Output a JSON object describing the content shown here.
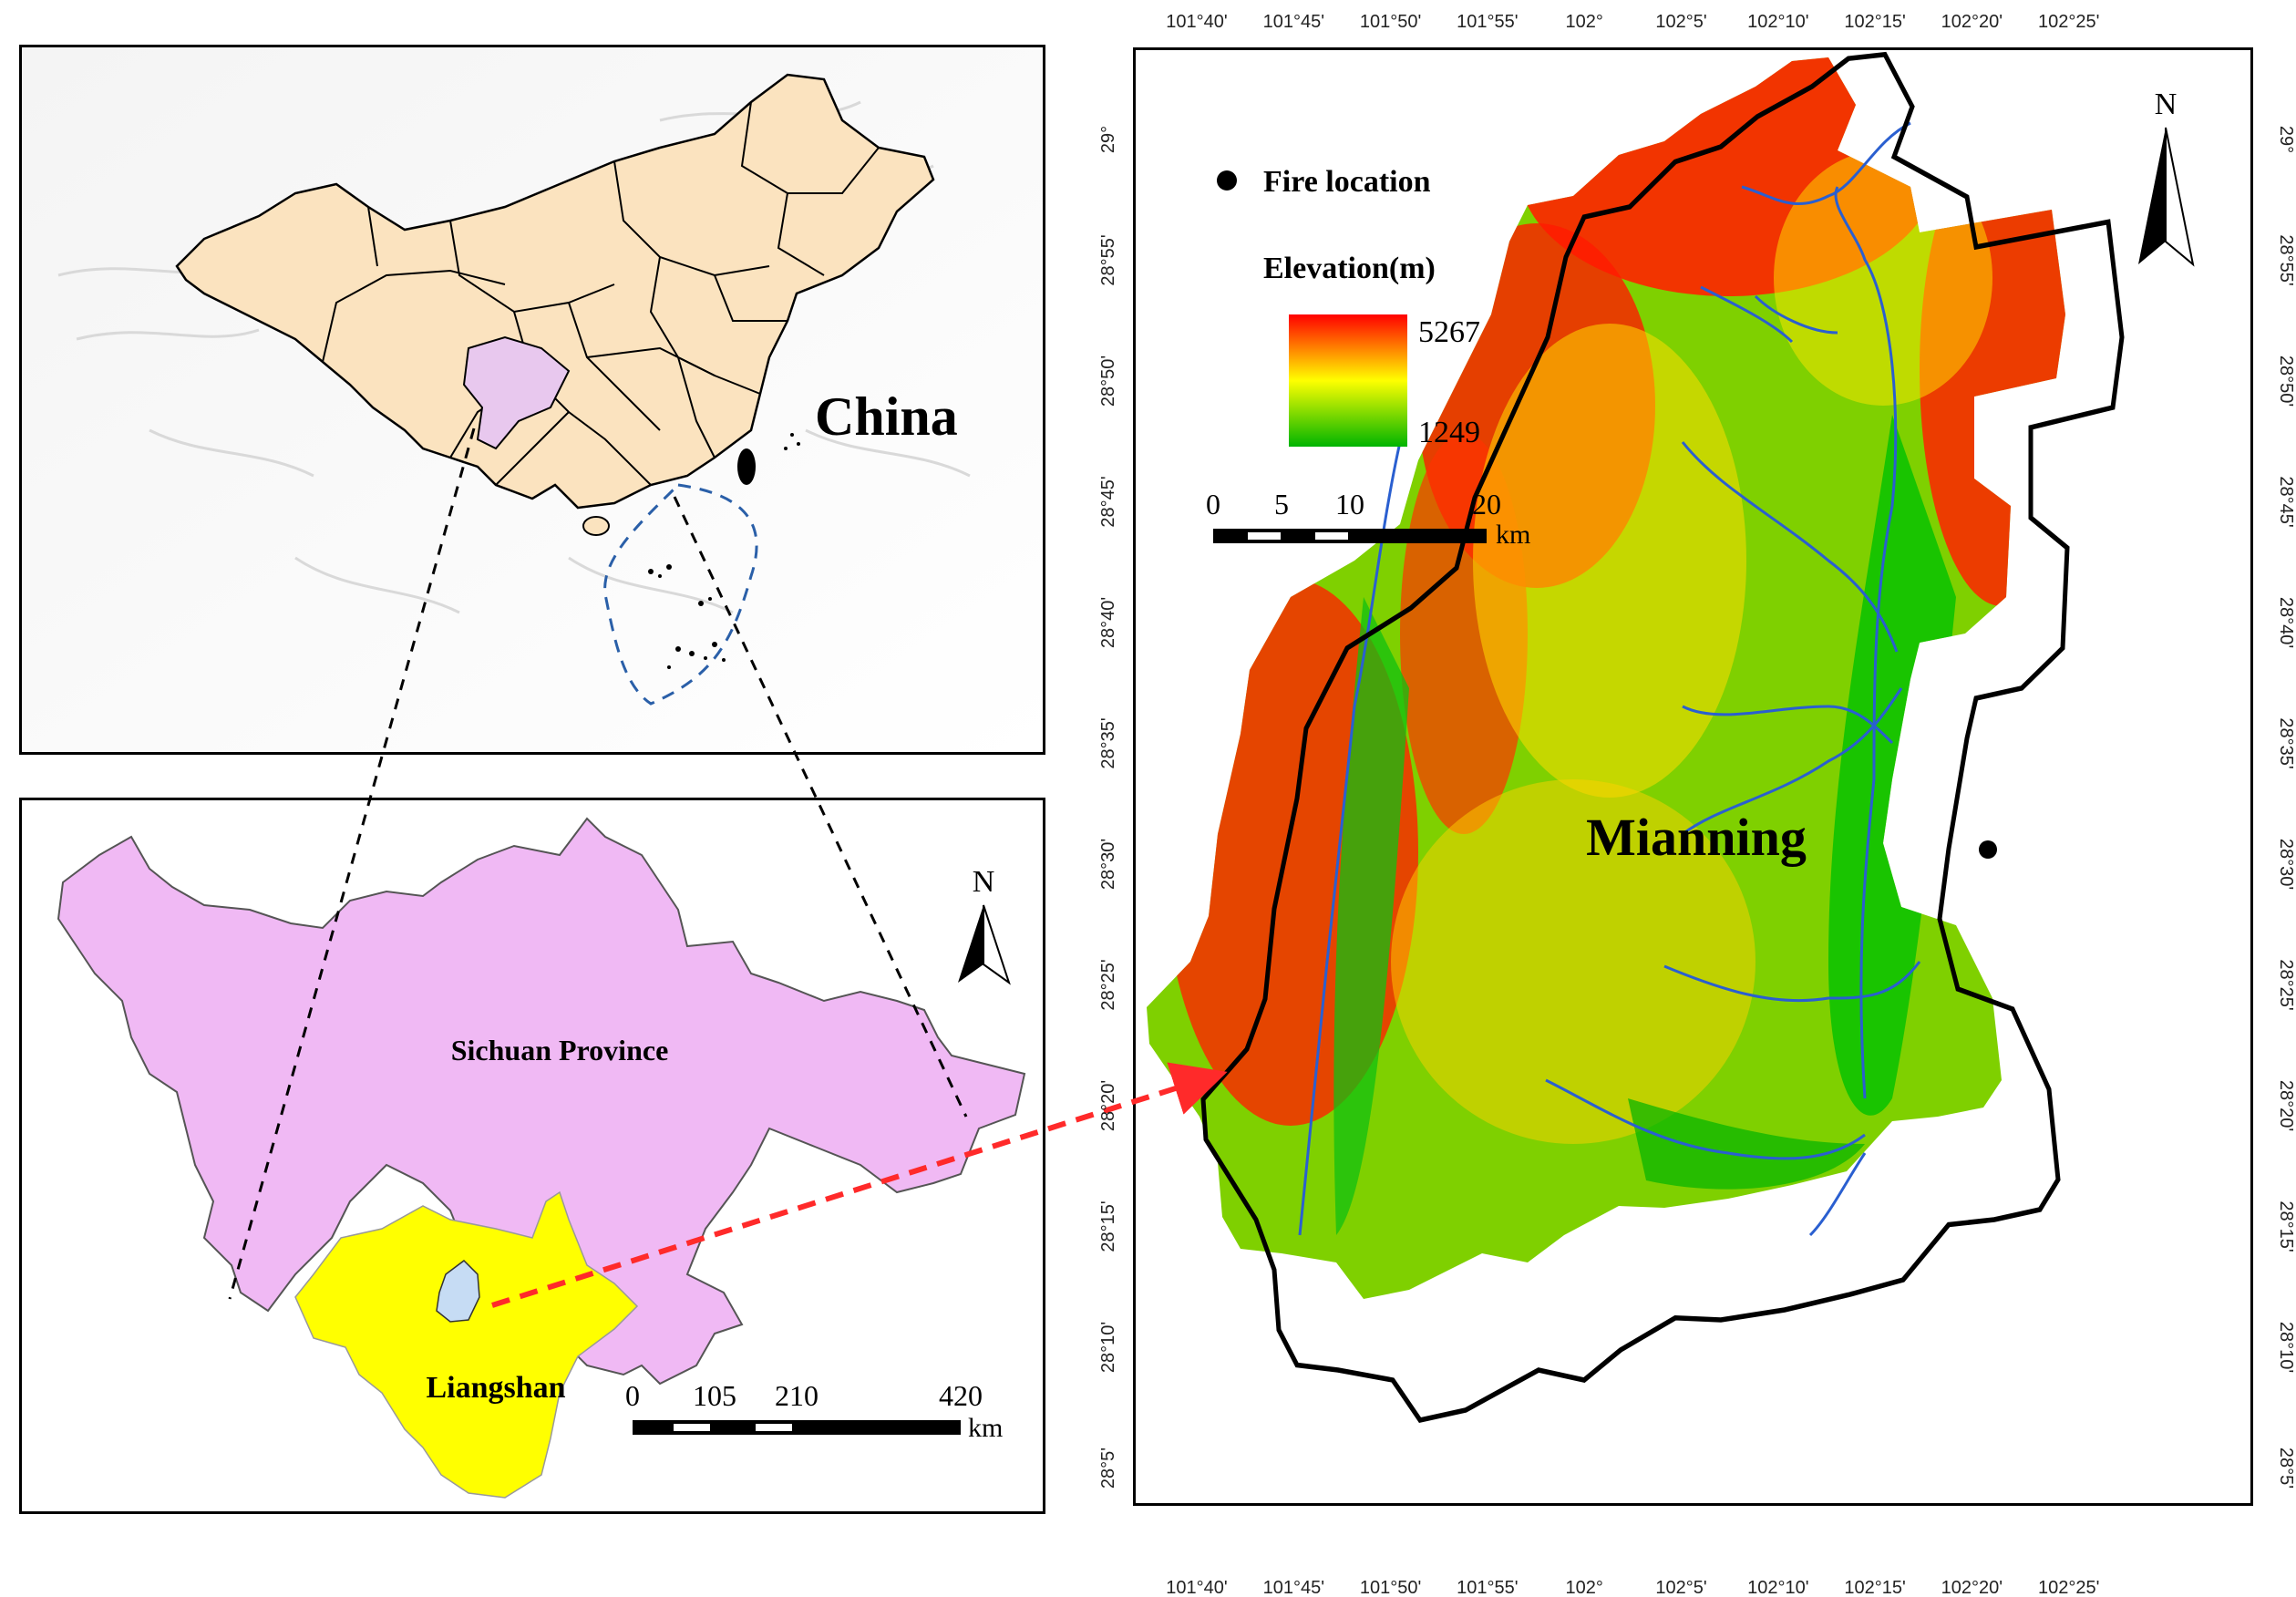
{
  "china_panel": {
    "label": "China"
  },
  "sichuan_panel": {
    "province_label": "Sichuan Province",
    "prefecture_label": "Liangshan",
    "north_label": "N",
    "scale": {
      "ticks": [
        "0",
        "105",
        "210",
        "420"
      ],
      "unit": "km"
    }
  },
  "mianning_panel": {
    "county_label": "Mianning",
    "north_label": "N",
    "legend": {
      "fire_label": "Fire location",
      "elevation_title": "Elevation(m)",
      "elevation_max": "5267",
      "elevation_min": "1249"
    },
    "scale": {
      "ticks": [
        "0",
        "5",
        "10",
        "20"
      ],
      "unit": "km"
    },
    "lon_labels": [
      "101°40'",
      "101°45'",
      "101°50'",
      "101°55'",
      "102°",
      "102°5'",
      "102°10'",
      "102°15'",
      "102°20'",
      "102°25'"
    ],
    "lat_labels": [
      "29°",
      "28°55'",
      "28°50'",
      "28°45'",
      "28°40'",
      "28°35'",
      "28°30'",
      "28°25'",
      "28°20'",
      "28°15'",
      "28°10'",
      "28°5'"
    ]
  },
  "colors": {
    "china_fill": "#fbe3bf",
    "sichuan_highlight": "#e8c8ee",
    "sichuan_fill": "#f0b9f4",
    "liangshan_fill": "#ffff00",
    "mianning_fill": "#c6dcf4",
    "elev_high": "#ff0000",
    "elev_mid": "#ffff00",
    "elev_low": "#00b400",
    "river": "#2a5fd0",
    "arrow": "#ff2a2a"
  }
}
